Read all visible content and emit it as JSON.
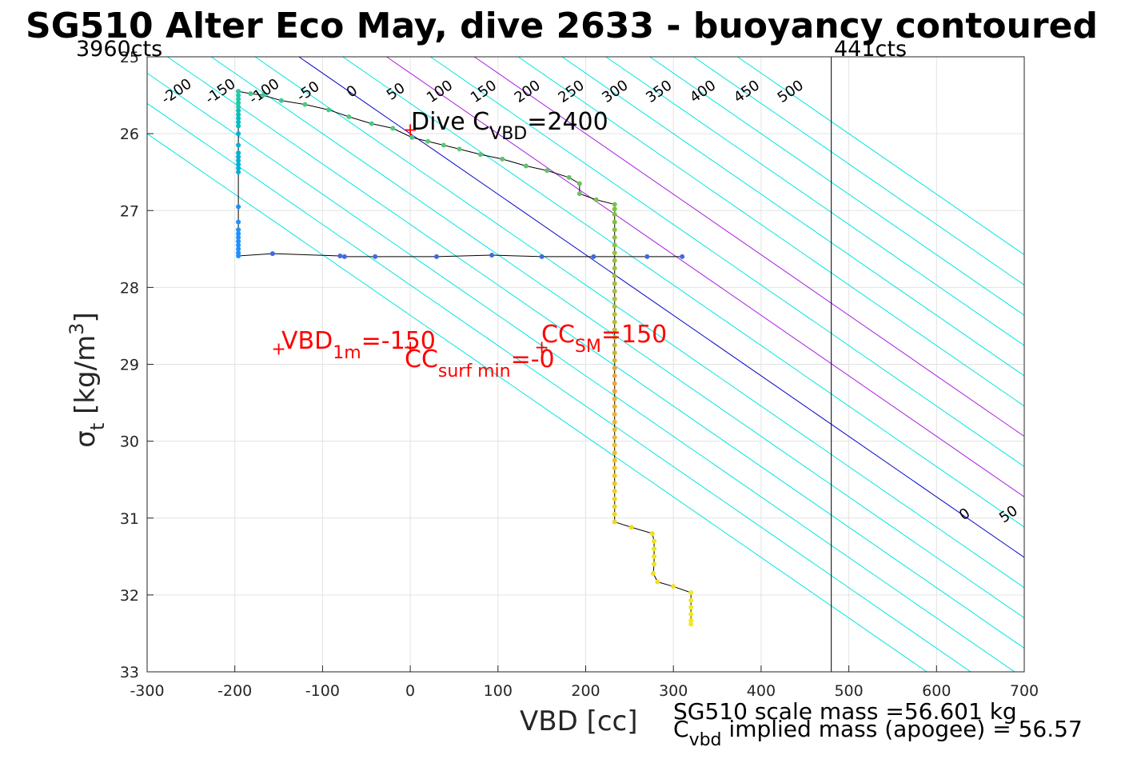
{
  "chart_data": {
    "type": "scatter",
    "title": "SG510 Alter Eco May, dive 2633 - buoyancy contoured",
    "xlabel": "VBD [cc]",
    "ylabel": "σ_t [kg/m^3]",
    "ylabel_parts": {
      "sym": "σ",
      "sub": "t",
      "main": " [kg/m",
      "sup": "3",
      "end": "]"
    },
    "xlim": [
      -300,
      700
    ],
    "ylim": [
      25,
      33
    ],
    "y_reversed": true,
    "grid": true,
    "xticks": [
      -300,
      -200,
      -100,
      0,
      100,
      200,
      300,
      400,
      500,
      600,
      700
    ],
    "yticks": [
      25,
      26,
      27,
      28,
      29,
      30,
      31,
      32,
      33
    ],
    "top_labels": {
      "left": "3960cts",
      "right": "441cts"
    },
    "vertical_line_x": 480,
    "contour_levels": [
      -300,
      -250,
      -200,
      -150,
      -100,
      -50,
      0,
      50,
      100,
      150,
      200,
      250,
      300,
      350,
      400,
      450,
      500
    ],
    "contour_slope_cc_per_sigma": 127,
    "contour_colors": {
      "zero": "#0000cc",
      "special": "#aa22dd",
      "other": "#00e6e6"
    },
    "special_contours": [
      100,
      200
    ],
    "annotations": {
      "dive_cvbd": {
        "main": "Dive C",
        "sub": "VBD",
        "rest": "=2400",
        "x": 0,
        "y": 25.95
      },
      "vbd_1m": {
        "main": "VBD",
        "sub": "1m",
        "rest": "=-150",
        "x": -150,
        "y": 28.8
      },
      "cc_surf_min": {
        "main": "CC",
        "sub": "surf min",
        "rest": "=-0",
        "x": 150,
        "y": 28.8
      },
      "cc_sm": {
        "main": "CC",
        "sub": "SM",
        "rest": "=150",
        "x": 235,
        "y": 28.7
      }
    },
    "footer": {
      "scale_mass": "SG510 scale mass =56.601 kg",
      "implied_main": "C",
      "implied_sub": "vbd",
      "implied_rest": " implied mass (apogee) = 56.57"
    },
    "series": [
      {
        "points": [
          [
            310,
            27.6
          ],
          [
            270,
            27.6
          ],
          [
            209,
            27.6
          ],
          [
            150,
            27.6
          ],
          [
            93,
            27.58
          ],
          [
            30,
            27.6
          ],
          [
            -40,
            27.6
          ],
          [
            -75,
            27.6
          ],
          [
            -80,
            27.59
          ],
          [
            -157,
            27.56
          ],
          [
            -196,
            27.59
          ],
          [
            -196,
            27.55
          ],
          [
            -196,
            27.5
          ],
          [
            -196,
            27.45
          ],
          [
            -196,
            27.4
          ],
          [
            -196,
            27.35
          ],
          [
            -196,
            27.3
          ],
          [
            -196,
            27.25
          ],
          [
            -196,
            27.15
          ],
          [
            -196,
            26.95
          ],
          [
            -196,
            26.5
          ],
          [
            -196,
            26.45
          ],
          [
            -196,
            26.4
          ],
          [
            -196,
            26.35
          ],
          [
            -196,
            26.3
          ],
          [
            -196,
            26.25
          ],
          [
            -196,
            26.15
          ],
          [
            -196,
            26.0
          ],
          [
            -196,
            25.9
          ],
          [
            -196,
            25.85
          ],
          [
            -196,
            25.8
          ],
          [
            -196,
            25.75
          ],
          [
            -196,
            25.7
          ],
          [
            -196,
            25.65
          ],
          [
            -196,
            25.6
          ],
          [
            -196,
            25.55
          ],
          [
            -196,
            25.5
          ],
          [
            -196,
            25.45
          ]
        ],
        "colors": [
          "#4169e1",
          "#4169e1",
          "#4169e1",
          "#4169e1",
          "#4169e1",
          "#4169e1",
          "#4169e1",
          "#4169e1",
          "#4169e1",
          "#4169e1",
          "#1e90ff",
          "#1e90ff",
          "#1e90ff",
          "#1e90ff",
          "#1e90ff",
          "#1e90ff",
          "#1e90ff",
          "#1e90ff",
          "#1e90ff",
          "#1e90ff",
          "#00b2d6",
          "#00b2d6",
          "#00b2d6",
          "#00b2d6",
          "#00b2d6",
          "#00b2d6",
          "#00b2d6",
          "#00b2d6",
          "#00c0c0",
          "#00c0c0",
          "#00c0c0",
          "#00c0c0",
          "#00c0c0",
          "#20c8a8",
          "#20c8a8",
          "#20c8a8",
          "#20c8a8",
          "#20c8a8"
        ]
      },
      {
        "points": [
          [
            -196,
            25.45
          ],
          [
            -182,
            25.48
          ],
          [
            -168,
            25.5
          ],
          [
            -147,
            25.57
          ],
          [
            -120,
            25.62
          ],
          [
            -93,
            25.69
          ],
          [
            -70,
            25.78
          ],
          [
            -44,
            25.87
          ],
          [
            -20,
            25.93
          ],
          [
            2,
            26.05
          ],
          [
            20,
            26.1
          ],
          [
            38,
            26.15
          ],
          [
            56,
            26.2
          ],
          [
            80,
            26.27
          ],
          [
            105,
            26.33
          ],
          [
            132,
            26.42
          ],
          [
            156,
            26.48
          ],
          [
            181,
            26.57
          ],
          [
            193,
            26.65
          ],
          [
            193,
            26.78
          ],
          [
            212,
            26.86
          ],
          [
            233,
            26.92
          ],
          [
            233,
            26.98
          ],
          [
            233,
            27.05
          ],
          [
            233,
            27.15
          ],
          [
            233,
            27.25
          ],
          [
            233,
            27.35
          ],
          [
            233,
            27.45
          ]
        ],
        "colors": [
          "#30c8a0",
          "#40c890",
          "#40c890",
          "#40c890",
          "#50c880",
          "#50c880",
          "#50c880",
          "#50c880",
          "#50c880",
          "#50c880",
          "#58c878",
          "#58c878",
          "#58c878",
          "#60c070",
          "#60c070",
          "#60c070",
          "#68c068",
          "#68c068",
          "#70c060",
          "#70c060",
          "#78c050",
          "#78c050",
          "#80c040",
          "#80c040",
          "#88c040",
          "#88c040",
          "#90c040",
          "#90c040"
        ]
      },
      {
        "points": [
          [
            233,
            27.55
          ],
          [
            233,
            27.65
          ],
          [
            233,
            27.75
          ],
          [
            233,
            27.85
          ],
          [
            233,
            27.95
          ],
          [
            233,
            28.05
          ],
          [
            233,
            28.15
          ],
          [
            233,
            28.25
          ],
          [
            233,
            28.35
          ],
          [
            233,
            28.45
          ],
          [
            233,
            28.55
          ],
          [
            233,
            28.65
          ],
          [
            233,
            28.75
          ],
          [
            233,
            28.85
          ],
          [
            233,
            28.95
          ],
          [
            233,
            29.05
          ],
          [
            233,
            29.15
          ],
          [
            233,
            29.25
          ],
          [
            233,
            29.35
          ],
          [
            233,
            29.45
          ],
          [
            233,
            29.55
          ],
          [
            233,
            29.65
          ],
          [
            233,
            29.75
          ],
          [
            233,
            29.85
          ],
          [
            233,
            29.95
          ],
          [
            233,
            30.05
          ],
          [
            233,
            30.15
          ],
          [
            233,
            30.25
          ],
          [
            233,
            30.35
          ],
          [
            233,
            30.45
          ],
          [
            233,
            30.55
          ],
          [
            233,
            30.65
          ],
          [
            233,
            30.75
          ],
          [
            233,
            30.85
          ],
          [
            233,
            30.95
          ],
          [
            233,
            31.05
          ],
          [
            252,
            31.12
          ],
          [
            276,
            31.2
          ],
          [
            278,
            31.3
          ],
          [
            278,
            31.4
          ],
          [
            278,
            31.5
          ],
          [
            278,
            31.6
          ],
          [
            277,
            31.72
          ],
          [
            282,
            31.83
          ],
          [
            300,
            31.89
          ],
          [
            320,
            31.97
          ],
          [
            320,
            32.07
          ],
          [
            320,
            32.16
          ],
          [
            320,
            32.25
          ],
          [
            320,
            32.33
          ],
          [
            320,
            32.38
          ]
        ],
        "colors": [
          "#98c040",
          "#98c040",
          "#a0c040",
          "#a0c040",
          "#a8c040",
          "#a8c040",
          "#b0c040",
          "#b0c040",
          "#b8c038",
          "#b8c038",
          "#c0c038",
          "#c0c038",
          "#c8b838",
          "#c8b838",
          "#d0b838",
          "#e8a838",
          "#e8a838",
          "#f0a838",
          "#f0a838",
          "#f0b030",
          "#f0b030",
          "#f0b030",
          "#f0b830",
          "#f0b830",
          "#f0b830",
          "#f0c028",
          "#f0c028",
          "#f0c028",
          "#f0c820",
          "#f0c820",
          "#f0c820",
          "#f0d020",
          "#f0d020",
          "#f0d020",
          "#f0d820",
          "#f0d820",
          "#f0d820",
          "#f0e020",
          "#f0e020",
          "#f0e020",
          "#f0e020",
          "#f0e020",
          "#f0e020",
          "#f0e020",
          "#f0e020",
          "#f0e820",
          "#f0e820",
          "#f0e820",
          "#f0e820",
          "#f0e820",
          "#f0e820"
        ]
      }
    ],
    "red_markers": [
      [
        0,
        25.95
      ],
      [
        -150,
        28.8
      ],
      [
        0,
        28.78
      ],
      [
        150,
        28.78
      ]
    ]
  }
}
